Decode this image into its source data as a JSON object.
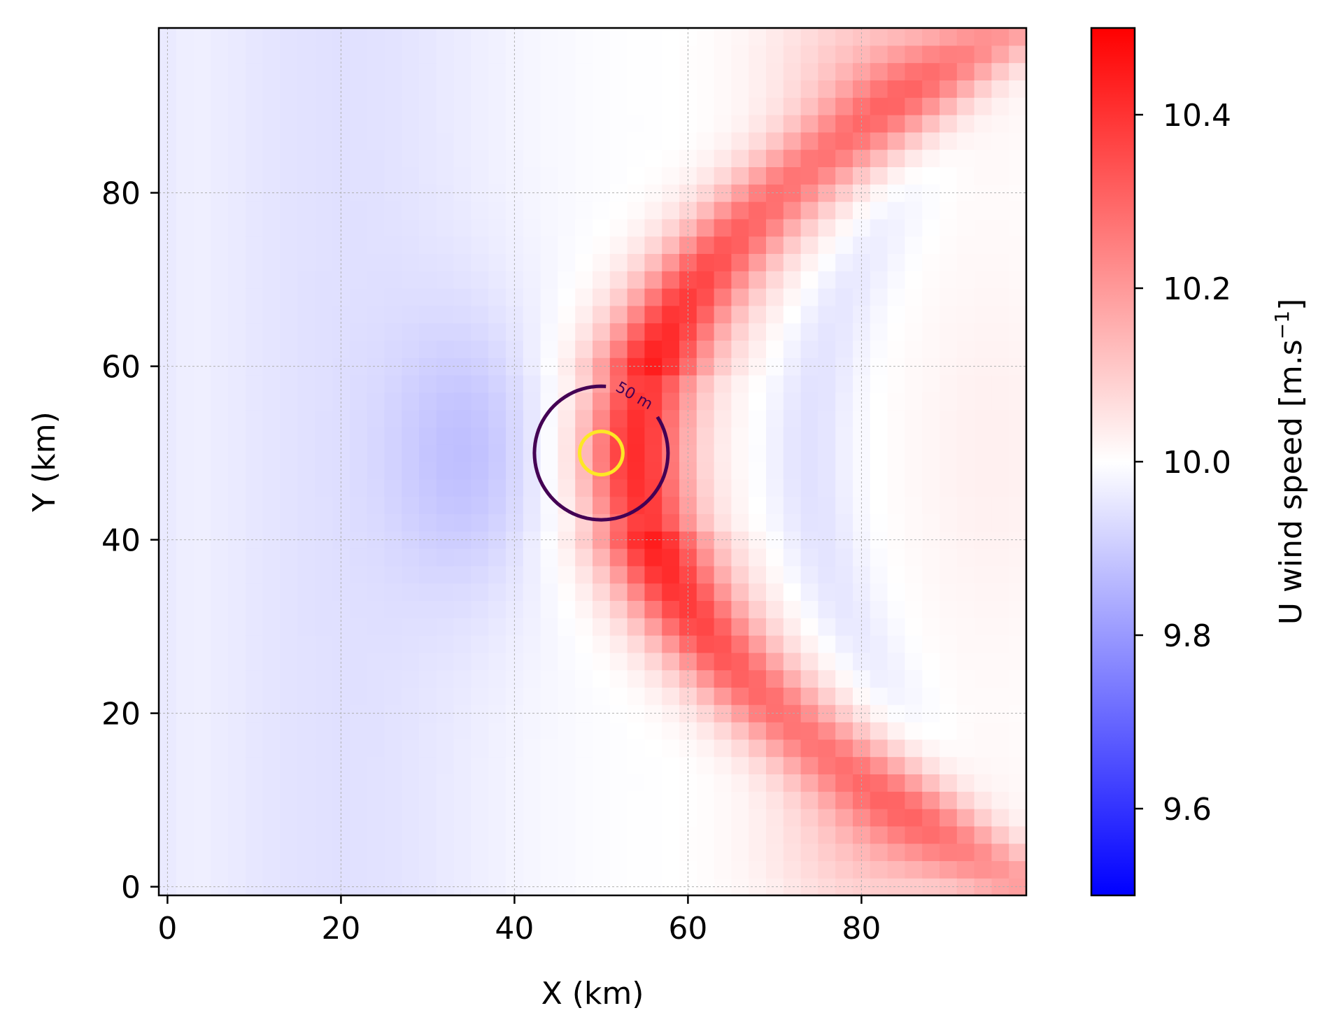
{
  "chart_data": {
    "type": "heatmap",
    "xlabel": "X (km)",
    "ylabel": "Y (km)",
    "xlim": [
      -1,
      99
    ],
    "ylim": [
      -1,
      99
    ],
    "x_ticks": [
      0,
      20,
      40,
      60,
      80
    ],
    "y_ticks": [
      0,
      20,
      40,
      60,
      80
    ],
    "x_tick_labels": [
      "0",
      "20",
      "40",
      "60",
      "80"
    ],
    "y_tick_labels": [
      "0",
      "20",
      "40",
      "60",
      "80"
    ],
    "grid": true,
    "colormap": "bwr",
    "colors": {
      "low": "#0000ff",
      "mid": "#ffffff",
      "high": "#ff0000"
    },
    "colorbar": {
      "label_main": "U wind speed [m.s",
      "label_sup": "−1",
      "label_end": "]",
      "vmin": 9.5,
      "vmax": 10.5,
      "ticks": [
        9.6,
        9.8,
        10.0,
        10.2,
        10.4
      ],
      "tick_labels": [
        "9.6",
        "9.8",
        "10.0",
        "10.2",
        "10.4"
      ]
    },
    "grid_cells": {
      "nx": 50,
      "ny": 50,
      "cell_km": 2
    },
    "field_description": "Uniform inflow 10 m/s perturbed by terrain hill at (50,50); slowdown upstream, acceleration flanks and downstream wave pattern",
    "contours": [
      {
        "level_label": "50 m",
        "center": [
          50,
          50
        ],
        "radius_km": 7.7,
        "color": "#440154"
      },
      {
        "level_label": "",
        "center": [
          50,
          50
        ],
        "radius_km": 2.5,
        "color": "#fde725"
      }
    ]
  }
}
